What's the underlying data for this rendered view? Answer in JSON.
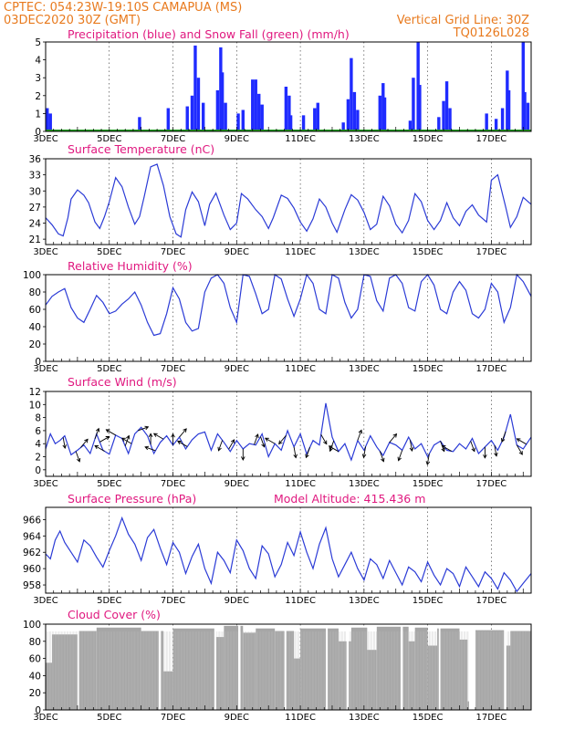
{
  "header": {
    "line1": "CPTEC:   054:23W-19:10S   CAMAPUA (MS)",
    "line2": "03DEC2020 30Z (GMT)",
    "grid_note": "Vertical Grid Line: 30Z",
    "code": "TQ0126L028"
  },
  "colors": {
    "header": "#e87a1e",
    "title": "#e0187f",
    "precip": "#1f2bff",
    "snow": "#1f9b1f",
    "line": "#2b3bd6",
    "cloud": "#a6a6a6",
    "wind_arrow": "#000000"
  },
  "x_axis": {
    "tick_labels": [
      "3DEC",
      "5DEC",
      "7DEC",
      "9DEC",
      "11DEC",
      "13DEC",
      "15DEC",
      "17DEC"
    ],
    "tick_days": [
      0,
      2,
      4,
      6,
      8,
      10,
      12,
      14
    ],
    "range_days": [
      0,
      15.25
    ]
  },
  "chart_data": [
    {
      "type": "bar",
      "title": "Precipitation (blue) and Snow Fall (green) (mm/h)",
      "ylim": [
        0,
        5
      ],
      "y_ticks": [
        "0",
        "1",
        "2",
        "3",
        "4",
        "5"
      ],
      "series": [
        {
          "name": "Precipitation (blue)",
          "clusters": [
            [
              0.05,
              1.3
            ],
            [
              0.15,
              1.0
            ],
            [
              2.95,
              0.8
            ],
            [
              3.85,
              1.3
            ],
            [
              4.45,
              1.4
            ],
            [
              4.6,
              2.0
            ],
            [
              4.7,
              4.8
            ],
            [
              4.8,
              3.0
            ],
            [
              4.95,
              1.6
            ],
            [
              5.4,
              2.3
            ],
            [
              5.5,
              4.7
            ],
            [
              5.55,
              3.3
            ],
            [
              5.65,
              1.6
            ],
            [
              6.05,
              1.0
            ],
            [
              6.2,
              1.2
            ],
            [
              6.5,
              2.9
            ],
            [
              6.6,
              2.9
            ],
            [
              6.7,
              2.1
            ],
            [
              6.8,
              1.5
            ],
            [
              7.55,
              2.5
            ],
            [
              7.65,
              2.0
            ],
            [
              7.7,
              0.9
            ],
            [
              8.1,
              0.9
            ],
            [
              8.45,
              1.3
            ],
            [
              8.55,
              1.6
            ],
            [
              9.35,
              0.5
            ],
            [
              9.5,
              1.8
            ],
            [
              9.6,
              4.1
            ],
            [
              9.7,
              2.2
            ],
            [
              9.8,
              1.2
            ],
            [
              10.5,
              2.0
            ],
            [
              10.6,
              2.7
            ],
            [
              10.65,
              1.9
            ],
            [
              11.45,
              0.6
            ],
            [
              11.55,
              3.0
            ],
            [
              11.7,
              5.0
            ],
            [
              11.75,
              2.6
            ],
            [
              12.35,
              0.8
            ],
            [
              12.5,
              1.7
            ],
            [
              12.6,
              2.8
            ],
            [
              12.7,
              1.3
            ],
            [
              13.85,
              1.0
            ],
            [
              14.15,
              0.7
            ],
            [
              14.35,
              1.3
            ],
            [
              14.5,
              3.4
            ],
            [
              14.55,
              2.3
            ],
            [
              15.0,
              5.0
            ],
            [
              15.05,
              2.2
            ],
            [
              15.15,
              1.6
            ]
          ]
        },
        {
          "name": "Snow Fall (green)",
          "values": [
            0
          ]
        }
      ]
    },
    {
      "type": "line",
      "title": "Surface Temperature (nC)",
      "ylim": [
        20,
        36
      ],
      "y_ticks": [
        "21",
        "24",
        "27",
        "30",
        "33",
        "36"
      ],
      "days": [
        0,
        0.2,
        0.4,
        0.55,
        0.7,
        0.8,
        1.0,
        1.2,
        1.35,
        1.55,
        1.7,
        1.85,
        2.0,
        2.2,
        2.4,
        2.6,
        2.8,
        2.95,
        3.1,
        3.3,
        3.5,
        3.7,
        3.9,
        4.1,
        4.25,
        4.4,
        4.6,
        4.8,
        5.0,
        5.15,
        5.35,
        5.6,
        5.8,
        6.0,
        6.15,
        6.35,
        6.6,
        6.8,
        7.0,
        7.15,
        7.4,
        7.6,
        7.8,
        8.0,
        8.2,
        8.4,
        8.6,
        8.8,
        9.0,
        9.15,
        9.4,
        9.6,
        9.8,
        10.0,
        10.2,
        10.4,
        10.6,
        10.8,
        11.0,
        11.2,
        11.4,
        11.6,
        11.8,
        12.0,
        12.2,
        12.4,
        12.6,
        12.8,
        13.0,
        13.2,
        13.4,
        13.6,
        13.85,
        14.0,
        14.2,
        14.45,
        14.6,
        14.8,
        15.0,
        15.25
      ],
      "values": [
        25,
        23.7,
        22.0,
        21.6,
        25,
        28.5,
        30.2,
        29.2,
        27.8,
        24.2,
        23.0,
        25.2,
        28.0,
        32.5,
        30.8,
        27.0,
        23.8,
        25.2,
        29.0,
        34.5,
        35.0,
        31.0,
        25.2,
        22.0,
        21.4,
        26.5,
        29.8,
        28.0,
        23.5,
        27.5,
        29.6,
        25.5,
        22.8,
        24.0,
        29.5,
        28.5,
        26.5,
        25.2,
        23.0,
        25.0,
        29.2,
        28.6,
        26.8,
        24.2,
        22.5,
        24.8,
        28.5,
        27.0,
        24.0,
        22.3,
        26.5,
        29.3,
        28.3,
        26.0,
        22.8,
        23.8,
        29.0,
        27.2,
        23.8,
        22.2,
        24.5,
        29.5,
        28.0,
        24.5,
        22.8,
        24.5,
        27.8,
        25.0,
        23.5,
        26.2,
        27.4,
        25.5,
        24.2,
        32.0,
        33.0,
        27.0,
        23.2,
        25.2,
        28.8,
        27.5
      ]
    },
    {
      "type": "line",
      "title": "Relative Humidity (%)",
      "ylim": [
        0,
        100
      ],
      "y_ticks": [
        "0",
        "20",
        "40",
        "60",
        "80",
        "100"
      ],
      "days": [
        0,
        0.2,
        0.4,
        0.6,
        0.8,
        1.0,
        1.2,
        1.4,
        1.6,
        1.8,
        2.0,
        2.2,
        2.4,
        2.6,
        2.8,
        3.0,
        3.2,
        3.4,
        3.6,
        3.8,
        4.0,
        4.2,
        4.4,
        4.6,
        4.8,
        5.0,
        5.2,
        5.4,
        5.6,
        5.8,
        6.0,
        6.2,
        6.4,
        6.6,
        6.8,
        7.0,
        7.2,
        7.4,
        7.6,
        7.8,
        8.0,
        8.2,
        8.4,
        8.6,
        8.8,
        9.0,
        9.2,
        9.4,
        9.6,
        9.8,
        10.0,
        10.2,
        10.4,
        10.6,
        10.8,
        11.0,
        11.2,
        11.4,
        11.6,
        11.8,
        12.0,
        12.2,
        12.4,
        12.6,
        12.8,
        13.0,
        13.2,
        13.4,
        13.6,
        13.8,
        14.0,
        14.2,
        14.4,
        14.6,
        14.8,
        15.0,
        15.25
      ],
      "values": [
        65,
        75,
        80,
        84,
        62,
        50,
        45,
        60,
        76,
        68,
        55,
        58,
        66,
        72,
        80,
        65,
        45,
        30,
        32,
        55,
        85,
        72,
        45,
        35,
        38,
        80,
        96,
        100,
        90,
        62,
        45,
        100,
        98,
        78,
        55,
        60,
        100,
        95,
        72,
        52,
        72,
        100,
        90,
        60,
        55,
        100,
        96,
        68,
        50,
        60,
        100,
        98,
        70,
        58,
        96,
        100,
        90,
        62,
        58,
        92,
        100,
        88,
        60,
        55,
        80,
        92,
        82,
        55,
        50,
        60,
        90,
        80,
        45,
        62,
        100,
        92,
        75
      ]
    },
    {
      "type": "line",
      "title": "Surface Wind (m/s)",
      "ylim": [
        -1,
        12
      ],
      "y_ticks": [
        "0",
        "2",
        "4",
        "6",
        "8",
        "10",
        "12"
      ],
      "days": [
        0,
        0.15,
        0.3,
        0.45,
        0.6,
        0.8,
        1.0,
        1.2,
        1.4,
        1.6,
        1.8,
        2.0,
        2.2,
        2.4,
        2.6,
        2.8,
        3.0,
        3.2,
        3.4,
        3.6,
        3.8,
        4.0,
        4.2,
        4.4,
        4.6,
        4.8,
        5.0,
        5.2,
        5.4,
        5.6,
        5.8,
        6.0,
        6.2,
        6.4,
        6.6,
        6.8,
        7.0,
        7.2,
        7.4,
        7.6,
        7.8,
        8.0,
        8.2,
        8.4,
        8.6,
        8.8,
        9.0,
        9.2,
        9.4,
        9.6,
        9.8,
        10.0,
        10.2,
        10.4,
        10.6,
        10.8,
        11.0,
        11.2,
        11.4,
        11.6,
        11.8,
        12.0,
        12.2,
        12.4,
        12.6,
        12.8,
        13.0,
        13.2,
        13.4,
        13.6,
        13.8,
        14.0,
        14.2,
        14.4,
        14.6,
        14.8,
        15.0,
        15.25
      ],
      "values": [
        3.2,
        5.5,
        4.0,
        4.5,
        5.2,
        2.3,
        3.0,
        3.8,
        2.5,
        5.5,
        3.0,
        2.4,
        5.3,
        4.8,
        2.5,
        5.5,
        6.5,
        5.2,
        2.5,
        4.2,
        5.2,
        3.8,
        5.0,
        3.2,
        4.6,
        5.5,
        5.8,
        3.0,
        5.5,
        4.2,
        2.8,
        4.5,
        3.2,
        4.0,
        3.8,
        5.5,
        2.0,
        4.0,
        3.0,
        6.0,
        3.5,
        5.5,
        2.4,
        4.5,
        3.8,
        10.2,
        5.0,
        2.8,
        4.0,
        1.5,
        4.5,
        3.0,
        5.2,
        3.5,
        2.2,
        4.2,
        3.8,
        3.0,
        5.0,
        3.2,
        4.0,
        2.0,
        3.8,
        4.4,
        3.0,
        2.8,
        4.0,
        3.2,
        4.8,
        2.5,
        3.5,
        4.5,
        3.0,
        5.0,
        8.5,
        3.8,
        3.2,
        5.0
      ],
      "wind_arrows": [
        {
          "day": 0.55,
          "dir_deg": 170
        },
        {
          "day": 0.95,
          "dir_deg": 160
        },
        {
          "day": 1.1,
          "dir_deg": 40
        },
        {
          "day": 1.55,
          "dir_deg": 20
        },
        {
          "day": 1.7,
          "dir_deg": 60
        },
        {
          "day": 1.85,
          "dir_deg": 300
        },
        {
          "day": 2.2,
          "dir_deg": 300
        },
        {
          "day": 2.5,
          "dir_deg": 20
        },
        {
          "day": 2.7,
          "dir_deg": 300
        },
        {
          "day": 2.9,
          "dir_deg": 70
        },
        {
          "day": 3.3,
          "dir_deg": 0
        },
        {
          "day": 3.45,
          "dir_deg": 290
        },
        {
          "day": 3.7,
          "dir_deg": 300
        },
        {
          "day": 4.0,
          "dir_deg": 0
        },
        {
          "day": 4.2,
          "dir_deg": 40
        },
        {
          "day": 4.45,
          "dir_deg": 300
        },
        {
          "day": 5.55,
          "dir_deg": 200
        },
        {
          "day": 5.75,
          "dir_deg": 30
        },
        {
          "day": 6.2,
          "dir_deg": 180
        },
        {
          "day": 6.55,
          "dir_deg": 20
        },
        {
          "day": 6.75,
          "dir_deg": 160
        },
        {
          "day": 7.2,
          "dir_deg": 300
        },
        {
          "day": 7.55,
          "dir_deg": 220
        },
        {
          "day": 7.8,
          "dir_deg": 170
        },
        {
          "day": 8.3,
          "dir_deg": 200
        },
        {
          "day": 8.65,
          "dir_deg": 150
        },
        {
          "day": 9.05,
          "dir_deg": 200
        },
        {
          "day": 9.2,
          "dir_deg": 300
        },
        {
          "day": 9.8,
          "dir_deg": 20
        },
        {
          "day": 10.05,
          "dir_deg": 190
        },
        {
          "day": 10.5,
          "dir_deg": 160
        },
        {
          "day": 10.8,
          "dir_deg": 40
        },
        {
          "day": 11.2,
          "dir_deg": 200
        },
        {
          "day": 11.45,
          "dir_deg": 170
        },
        {
          "day": 12.05,
          "dir_deg": 190
        },
        {
          "day": 12.4,
          "dir_deg": 160
        },
        {
          "day": 12.75,
          "dir_deg": 300
        },
        {
          "day": 13.35,
          "dir_deg": 160
        },
        {
          "day": 13.8,
          "dir_deg": 180
        },
        {
          "day": 14.1,
          "dir_deg": 170
        },
        {
          "day": 14.45,
          "dir_deg": 200
        },
        {
          "day": 14.8,
          "dir_deg": 150
        },
        {
          "day": 15.1,
          "dir_deg": 300
        }
      ]
    },
    {
      "type": "line",
      "title": "Surface Pressure (hPa)",
      "annotation": "Model Altitude: 415.436 m",
      "ylim": [
        957,
        967.5
      ],
      "y_ticks": [
        "958",
        "960",
        "962",
        "964",
        "966"
      ],
      "days": [
        0,
        0.15,
        0.3,
        0.45,
        0.6,
        0.8,
        1.0,
        1.2,
        1.4,
        1.6,
        1.8,
        2.0,
        2.2,
        2.4,
        2.6,
        2.8,
        3.0,
        3.2,
        3.4,
        3.6,
        3.8,
        4.0,
        4.2,
        4.4,
        4.6,
        4.8,
        5.0,
        5.2,
        5.4,
        5.6,
        5.8,
        6.0,
        6.2,
        6.4,
        6.6,
        6.8,
        7.0,
        7.2,
        7.4,
        7.6,
        7.8,
        8.0,
        8.2,
        8.4,
        8.6,
        8.8,
        9.0,
        9.2,
        9.4,
        9.6,
        9.8,
        10.0,
        10.2,
        10.4,
        10.6,
        10.8,
        11.0,
        11.2,
        11.4,
        11.6,
        11.8,
        12.0,
        12.2,
        12.4,
        12.6,
        12.8,
        13.0,
        13.2,
        13.4,
        13.6,
        13.8,
        14.0,
        14.2,
        14.4,
        14.6,
        14.8,
        15.0,
        15.25
      ],
      "values": [
        961.8,
        961.2,
        963.5,
        964.6,
        963.2,
        962.0,
        960.8,
        963.5,
        962.8,
        961.4,
        960.2,
        962.2,
        964.0,
        966.2,
        964.2,
        963.0,
        961.0,
        963.8,
        964.8,
        962.5,
        960.5,
        963.2,
        962.0,
        959.4,
        961.5,
        963.0,
        960.0,
        958.2,
        962.0,
        961.0,
        959.5,
        963.5,
        962.2,
        960.0,
        958.8,
        962.8,
        961.8,
        959.0,
        960.5,
        963.2,
        961.6,
        964.5,
        962.0,
        960.0,
        963.0,
        965.0,
        961.2,
        959.0,
        960.5,
        962.0,
        960.0,
        958.6,
        961.2,
        960.5,
        958.8,
        961.0,
        959.5,
        958.0,
        960.2,
        959.6,
        958.4,
        960.8,
        959.2,
        958.0,
        960.0,
        959.4,
        957.8,
        960.2,
        959.0,
        957.8,
        959.6,
        958.8,
        957.5,
        959.5,
        958.6,
        957.2,
        958.2,
        959.4
      ]
    },
    {
      "type": "area",
      "title": "Cloud Cover (%)",
      "ylim": [
        0,
        100
      ],
      "y_ticks": [
        "0",
        "20",
        "40",
        "60",
        "80",
        "100"
      ],
      "segments": [
        [
          0.0,
          0.2,
          55
        ],
        [
          0.2,
          1.0,
          88
        ],
        [
          1.0,
          1.6,
          92
        ],
        [
          1.6,
          3.0,
          96
        ],
        [
          3.0,
          3.7,
          92
        ],
        [
          3.7,
          4.0,
          45
        ],
        [
          4.0,
          5.3,
          95
        ],
        [
          5.3,
          5.6,
          85
        ],
        [
          5.6,
          6.2,
          98
        ],
        [
          6.2,
          6.6,
          90
        ],
        [
          6.6,
          7.2,
          95
        ],
        [
          7.2,
          7.8,
          92
        ],
        [
          7.8,
          8.0,
          60
        ],
        [
          8.0,
          9.2,
          95
        ],
        [
          9.2,
          9.6,
          80
        ],
        [
          9.6,
          10.1,
          96
        ],
        [
          10.1,
          10.4,
          70
        ],
        [
          10.4,
          11.4,
          97
        ],
        [
          11.4,
          11.6,
          80
        ],
        [
          11.6,
          12.0,
          96
        ],
        [
          12.0,
          12.3,
          75
        ],
        [
          12.3,
          13.0,
          95
        ],
        [
          13.0,
          13.25,
          82
        ],
        [
          13.25,
          13.5,
          10
        ],
        [
          13.5,
          14.4,
          93
        ],
        [
          14.4,
          14.6,
          75
        ],
        [
          14.6,
          15.25,
          92
        ]
      ],
      "gaps": [
        [
          1.0,
          1.05
        ],
        [
          3.55,
          3.62
        ],
        [
          5.3,
          5.36
        ],
        [
          6.05,
          6.12
        ],
        [
          7.5,
          7.56
        ],
        [
          8.8,
          8.86
        ],
        [
          9.45,
          9.52
        ],
        [
          11.15,
          11.22
        ],
        [
          12.35,
          12.4
        ],
        [
          13.3,
          13.5
        ],
        [
          14.4,
          14.47
        ]
      ]
    }
  ]
}
